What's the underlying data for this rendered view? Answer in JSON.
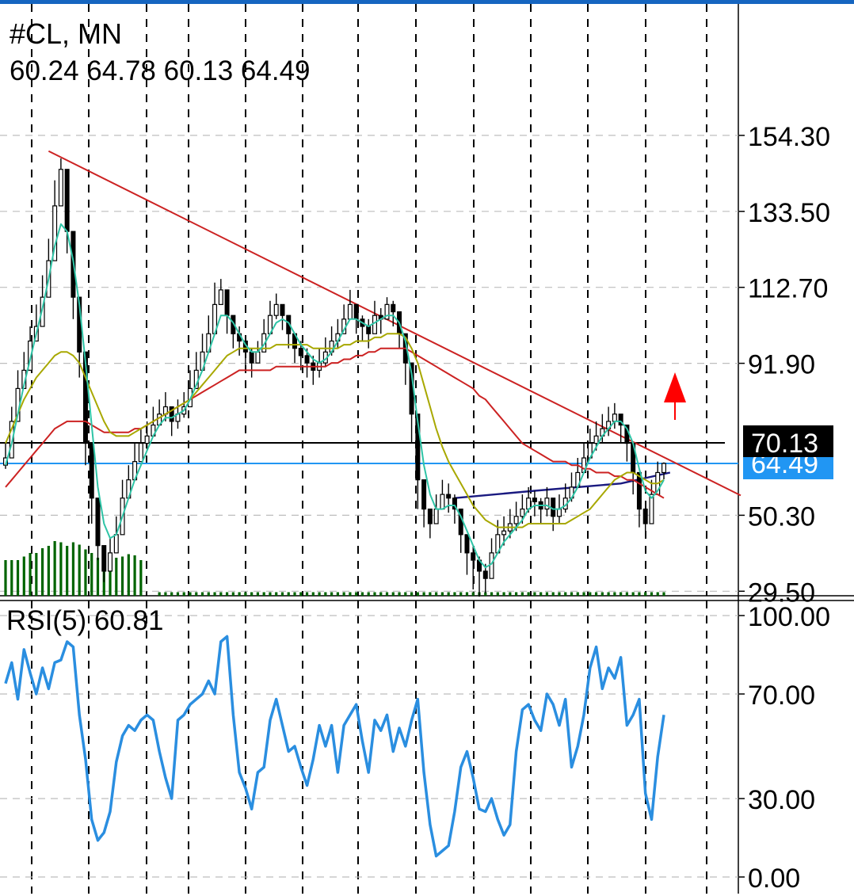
{
  "symbol_label": "#CL, MN",
  "ohlc_label": "60.24 64.78 60.13 64.49",
  "rsi_label": "RSI(5) 60.81",
  "colors": {
    "candle": "#000000",
    "ma_fast": "#2ec4a6",
    "ma_mid": "#a8a800",
    "ma_slow": "#cc2222",
    "trendline": "#cc2222",
    "neckline": "#1a1a80",
    "support_line": "#000000",
    "current_price_line": "#2196f3",
    "volume": "#006400",
    "rsi": "#2a8ee0",
    "arrow": "#ff0000",
    "grid": "#bdbdbd"
  },
  "chart_data": [
    {
      "type": "candlestick",
      "title": "#CL, MN",
      "y_axis_ticks": [
        "154.30",
        "133.50",
        "112.70",
        "91.90",
        "50.30",
        "29.50"
      ],
      "ylim": [
        18,
        163
      ],
      "price_labels": [
        {
          "value": 70.13,
          "text": "70.13",
          "style": "dark"
        },
        {
          "value": 64.49,
          "text": "64.49",
          "style": "blue"
        }
      ],
      "last_bar": {
        "open": 60.24,
        "high": 64.78,
        "low": 60.13,
        "close": 64.49
      },
      "closes": [
        66,
        76,
        85,
        90,
        98,
        102,
        110,
        120,
        135,
        145,
        128,
        110,
        95,
        70,
        55,
        42,
        35,
        40,
        45,
        55,
        60,
        65,
        70,
        72,
        75,
        78,
        80,
        76,
        78,
        80,
        85,
        90,
        95,
        100,
        108,
        112,
        105,
        100,
        98,
        95,
        92,
        95,
        100,
        105,
        108,
        105,
        100,
        96,
        94,
        92,
        90,
        92,
        95,
        98,
        100,
        104,
        108,
        104,
        102,
        100,
        105,
        104,
        108,
        106,
        100,
        92,
        78,
        60,
        52,
        48,
        52,
        56,
        55,
        52,
        45,
        40,
        38,
        35,
        33,
        40,
        45,
        46,
        48,
        50,
        52,
        55,
        54,
        52,
        55,
        50,
        52,
        55,
        58,
        62,
        66,
        70,
        72,
        74,
        76,
        78,
        75,
        70,
        62,
        52,
        48,
        56,
        62,
        64.49
      ],
      "highs": [
        70,
        80,
        90,
        95,
        102,
        108,
        116,
        126,
        142,
        148,
        134,
        115,
        100,
        74,
        60,
        46,
        40,
        44,
        50,
        60,
        64,
        70,
        74,
        76,
        80,
        82,
        84,
        80,
        82,
        84,
        90,
        95,
        100,
        105,
        114,
        115,
        108,
        104,
        102,
        98,
        96,
        98,
        104,
        109,
        111,
        108,
        104,
        100,
        98,
        96,
        94,
        96,
        99,
        102,
        104,
        108,
        112,
        107,
        105,
        104,
        109,
        107,
        110,
        109,
        104,
        96,
        82,
        64,
        56,
        52,
        56,
        60,
        59,
        56,
        49,
        44,
        42,
        39,
        37,
        44,
        49,
        50,
        52,
        54,
        56,
        58,
        57,
        55,
        58,
        54,
        56,
        59,
        62,
        66,
        70,
        74,
        76,
        78,
        80,
        81,
        78,
        74,
        66,
        56,
        52,
        60,
        65,
        64.78
      ],
      "lows": [
        63,
        72,
        80,
        86,
        94,
        98,
        106,
        116,
        130,
        138,
        122,
        104,
        88,
        64,
        48,
        38,
        32,
        37,
        42,
        52,
        56,
        62,
        66,
        68,
        72,
        75,
        76,
        72,
        74,
        77,
        82,
        86,
        92,
        96,
        104,
        108,
        100,
        96,
        94,
        91,
        88,
        92,
        96,
        101,
        104,
        101,
        96,
        92,
        90,
        88,
        86,
        88,
        91,
        94,
        96,
        100,
        104,
        100,
        98,
        96,
        100,
        100,
        104,
        102,
        96,
        86,
        70,
        52,
        47,
        44,
        48,
        52,
        51,
        48,
        40,
        34,
        30,
        28,
        29,
        36,
        41,
        42,
        44,
        46,
        48,
        51,
        50,
        48,
        50,
        46,
        48,
        51,
        54,
        58,
        62,
        66,
        68,
        70,
        72,
        74,
        70,
        65,
        56,
        47,
        44,
        52,
        58,
        60.13
      ],
      "ma_fast": [
        64,
        70,
        78,
        86,
        93,
        100,
        107,
        115,
        124,
        130,
        128,
        120,
        108,
        92,
        75,
        58,
        48,
        44,
        45,
        50,
        55,
        60,
        64,
        68,
        72,
        75,
        77,
        77,
        78,
        79,
        82,
        86,
        90,
        95,
        100,
        105,
        105,
        103,
        100,
        97,
        95,
        95,
        97,
        100,
        103,
        104,
        103,
        100,
        97,
        95,
        93,
        92,
        93,
        95,
        98,
        101,
        104,
        104,
        103,
        102,
        103,
        104,
        105,
        105,
        103,
        98,
        89,
        76,
        64,
        56,
        52,
        52,
        53,
        53,
        50,
        46,
        42,
        38,
        36,
        37,
        40,
        43,
        45,
        47,
        49,
        52,
        53,
        53,
        53,
        52,
        52,
        53,
        55,
        58,
        62,
        66,
        69,
        72,
        74,
        76,
        76,
        74,
        70,
        63,
        57,
        55,
        57,
        60
      ],
      "ma_mid": [
        70,
        74,
        78,
        82,
        85,
        88,
        90,
        92,
        94,
        95,
        95,
        94,
        92,
        88,
        84,
        80,
        76,
        73,
        72,
        72,
        72,
        73,
        74,
        75,
        76,
        77,
        78,
        79,
        80,
        81,
        82,
        84,
        86,
        88,
        90,
        92,
        94,
        95,
        96,
        96,
        96,
        96,
        96,
        96,
        97,
        97,
        97,
        97,
        97,
        97,
        96,
        96,
        96,
        96,
        96,
        97,
        97,
        98,
        98,
        98,
        99,
        99,
        100,
        100,
        100,
        99,
        96,
        92,
        86,
        80,
        74,
        69,
        65,
        62,
        59,
        56,
        53,
        51,
        49,
        48,
        47,
        47,
        47,
        47,
        47,
        48,
        48,
        48,
        48,
        48,
        48,
        48,
        49,
        50,
        51,
        52,
        54,
        56,
        58,
        60,
        61,
        62,
        62,
        61,
        60,
        59,
        59,
        60
      ],
      "ma_slow": [
        58,
        60,
        62,
        64,
        66,
        68,
        70,
        72,
        74,
        75,
        76,
        76,
        76,
        76,
        75,
        74,
        73,
        73,
        73,
        73,
        73,
        74,
        74,
        75,
        76,
        77,
        78,
        79,
        80,
        81,
        82,
        83,
        84,
        85,
        86,
        87,
        88,
        89,
        90,
        90,
        90,
        90,
        90,
        90,
        91,
        91,
        91,
        91,
        91,
        91,
        91,
        91,
        91,
        92,
        92,
        93,
        93,
        94,
        94,
        95,
        95,
        96,
        96,
        96,
        96,
        96,
        95,
        94,
        93,
        92,
        91,
        90,
        89,
        88,
        87,
        86,
        85,
        83,
        82,
        80,
        78,
        76,
        74,
        72,
        70,
        69,
        68,
        67,
        66,
        65,
        65,
        65,
        64,
        64,
        63,
        63,
        62,
        62,
        62,
        61,
        61,
        60,
        60,
        59,
        58,
        57,
        56,
        55
      ],
      "trendline": [
        [
          7,
          150
        ],
        [
          112,
          62
        ]
      ],
      "neckline_points": [
        [
          73,
          55
        ],
        [
          86,
          57
        ],
        [
          100,
          59
        ],
        [
          108,
          62
        ]
      ],
      "support_level": 70.13,
      "current_price": 64.49,
      "volume": [
        30,
        30,
        30,
        33,
        36,
        36,
        40,
        42,
        46,
        45,
        42,
        45,
        43,
        39,
        36,
        32,
        38,
        34,
        32,
        33,
        35,
        34,
        30,
        0,
        0,
        3,
        3,
        3,
        3,
        3,
        3,
        3,
        3,
        3,
        3,
        3,
        3,
        3,
        3,
        3,
        3,
        3,
        3,
        3,
        3,
        3,
        3,
        3,
        3,
        3,
        3,
        3,
        3,
        3,
        3,
        3,
        3,
        3,
        3,
        3,
        3,
        3,
        3,
        3,
        3,
        3,
        3,
        3,
        3,
        3,
        3,
        3,
        3,
        3,
        3,
        3,
        3,
        3,
        3,
        3,
        3,
        3,
        3,
        3,
        3,
        3,
        3,
        3,
        3,
        3,
        3,
        3,
        3,
        3,
        3,
        3,
        3,
        3,
        3,
        3,
        3,
        3,
        3,
        3,
        3,
        3,
        3,
        3
      ]
    },
    {
      "type": "line",
      "title": "RSI(5) 60.81",
      "y_axis_ticks": [
        "100.00",
        "70.00",
        "30.00",
        "0.00"
      ],
      "ylim": [
        0,
        100
      ],
      "series": [
        {
          "values": [
            74,
            82,
            68,
            87,
            78,
            70,
            80,
            72,
            82,
            83,
            90,
            88,
            62,
            45,
            22,
            14,
            17,
            25,
            44,
            54,
            58,
            56,
            60,
            62,
            60,
            48,
            38,
            30,
            60,
            62,
            66,
            68,
            70,
            75,
            70,
            90,
            92,
            62,
            40,
            34,
            26,
            40,
            42,
            60,
            68,
            58,
            48,
            50,
            42,
            35,
            45,
            58,
            50,
            58,
            40,
            58,
            62,
            66,
            52,
            40,
            60,
            56,
            62,
            48,
            57,
            50,
            60,
            68,
            40,
            20,
            8,
            10,
            12,
            25,
            42,
            48,
            38,
            26,
            25,
            30,
            22,
            16,
            20,
            48,
            64,
            66,
            60,
            56,
            70,
            66,
            58,
            68,
            42,
            50,
            62,
            80,
            88,
            72,
            80,
            76,
            84,
            58,
            62,
            68,
            32,
            22,
            46,
            62
          ],
          "last_value": 60.81
        }
      ]
    }
  ]
}
